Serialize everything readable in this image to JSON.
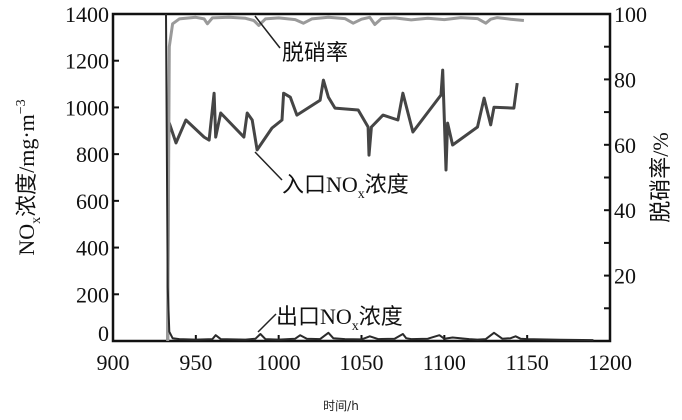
{
  "chart_data": {
    "type": "line",
    "xlabel": "时间/h",
    "ylabel_left": "NOx浓度/mg·m−3",
    "ylabel_left_parts": {
      "main": "NO",
      "sub": "x",
      "rest": "浓度/mg·m",
      "sup": "−3"
    },
    "ylabel_right": "脱硝率/%",
    "xlim": [
      900,
      1200
    ],
    "ylim_left": [
      0,
      1400
    ],
    "ylim_right": [
      0,
      100
    ],
    "x_ticks": [
      "900",
      "950",
      "1000",
      "1050",
      "1100",
      "1150",
      "1200"
    ],
    "y_left_ticks": [
      "0",
      "200",
      "400",
      "600",
      "800",
      "1000",
      "1200",
      "1400"
    ],
    "y_right_ticks": [
      "20",
      "40",
      "60",
      "80",
      "100"
    ],
    "grid": false,
    "colors": {
      "inlet": "#454545",
      "outlet": "#2a2a2a",
      "rate": "#9a9a9a",
      "axis": "#111111"
    },
    "annotations": [
      {
        "text": "脱硝率",
        "series": "rate"
      },
      {
        "text": "入口NOx浓度",
        "main": "入口NO",
        "sub": "x",
        "rest": "浓度",
        "series": "inlet"
      },
      {
        "text": "出口NOx浓度",
        "main": "出口NO",
        "sub": "x",
        "rest": "浓度",
        "series": "outlet"
      }
    ],
    "series": [
      {
        "key": "inlet",
        "axis": "left",
        "x": [
          933,
          933.5,
          934,
          938,
          944,
          955,
          958,
          961,
          962,
          965,
          979,
          981,
          984,
          987,
          996,
          1002,
          1003,
          1007,
          1011,
          1025,
          1027,
          1030,
          1034,
          1048,
          1054,
          1054.5,
          1056,
          1063,
          1072,
          1075,
          1081,
          1098,
          1099,
          1101,
          1102,
          1105,
          1120,
          1124,
          1128,
          1130,
          1142,
          1144
        ],
        "y": [
          0,
          848,
          933,
          848,
          946,
          873,
          860,
          1061,
          873,
          976,
          873,
          976,
          946,
          818,
          912,
          946,
          1061,
          1044,
          967,
          1031,
          1117,
          1044,
          997,
          989,
          916,
          796,
          916,
          967,
          946,
          1061,
          895,
          1053,
          1160,
          732,
          933,
          839,
          916,
          1040,
          925,
          1001,
          997,
          1104
        ]
      },
      {
        "key": "rate",
        "axis": "right",
        "x": [
          933,
          934,
          936,
          940,
          950,
          955,
          957,
          960,
          970,
          980,
          985,
          988,
          992,
          1000,
          1010,
          1015,
          1020,
          1030,
          1040,
          1045,
          1050,
          1055,
          1058,
          1062,
          1070,
          1080,
          1090,
          1100,
          1110,
          1120,
          1125,
          1128,
          1132,
          1140,
          1148
        ],
        "y": [
          0,
          90,
          97,
          98.5,
          99,
          98.5,
          97,
          98.8,
          99,
          98.7,
          98,
          96.5,
          98.5,
          98.8,
          98.3,
          97.2,
          98.5,
          99,
          98.6,
          97.2,
          98.4,
          99,
          96.8,
          98.6,
          98.8,
          98.2,
          98.7,
          98.3,
          98.9,
          98.6,
          97.2,
          98.4,
          98.9,
          98.4,
          98
        ]
      },
      {
        "key": "outlet",
        "axis": "left",
        "x": [
          932,
          933,
          934,
          936,
          940,
          950,
          960,
          962,
          965,
          980,
          986,
          989,
          992,
          1000,
          1010,
          1013,
          1017,
          1025,
          1030,
          1033,
          1040,
          1050,
          1055,
          1060,
          1070,
          1075,
          1077,
          1080,
          1090,
          1097,
          1100,
          1105,
          1115,
          1120,
          1125,
          1130,
          1135,
          1140,
          1143,
          1146,
          1150,
          1170,
          1190
        ],
        "y": [
          1400,
          230,
          40,
          12,
          8,
          6,
          8,
          25,
          8,
          6,
          10,
          30,
          8,
          6,
          10,
          25,
          10,
          8,
          35,
          12,
          8,
          7,
          20,
          8,
          10,
          30,
          12,
          8,
          10,
          25,
          10,
          15,
          8,
          6,
          8,
          35,
          10,
          12,
          20,
          10,
          8,
          5,
          4
        ]
      }
    ]
  }
}
